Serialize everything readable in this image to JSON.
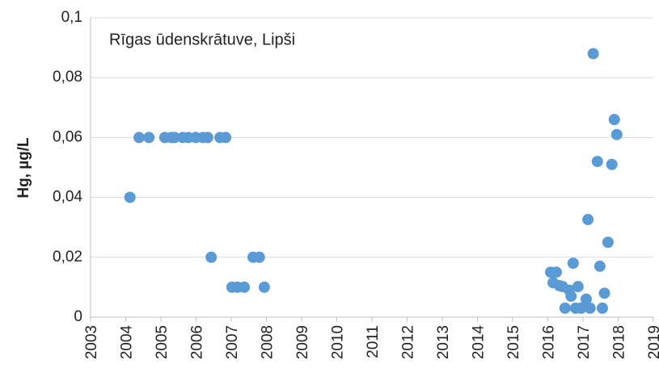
{
  "chart_data": {
    "type": "scatter",
    "title": "Rīgas ūdenskrātuve, Lipši",
    "y_label": "Hg, µg/L",
    "color": "#5b9bd5",
    "grid": true,
    "xlim": [
      2003,
      2019
    ],
    "xticks": [
      2003,
      2004,
      2005,
      2006,
      2007,
      2008,
      2009,
      2010,
      2011,
      2012,
      2013,
      2014,
      2015,
      2016,
      2017,
      2018,
      2019
    ],
    "ylim": [
      0,
      0.1
    ],
    "yticks": [
      0,
      {
        "value": 0.02,
        "label": "0,02"
      },
      {
        "value": 0.04,
        "label": "0,04"
      },
      {
        "value": 0.06,
        "label": "0,06"
      },
      {
        "value": 0.08,
        "label": "0,08"
      },
      {
        "value": 0.1,
        "label": "0,1"
      }
    ],
    "x": [
      2004.12,
      2004.38,
      2004.66,
      2005.11,
      2005.3,
      2005.39,
      2005.62,
      2005.78,
      2005.99,
      2006.2,
      2006.33,
      2006.43,
      2006.68,
      2006.84,
      2007.02,
      2007.18,
      2007.37,
      2007.62,
      2007.8,
      2007.94,
      2016.08,
      2016.15,
      2016.24,
      2016.33,
      2016.42,
      2016.49,
      2016.61,
      2016.66,
      2016.72,
      2016.79,
      2016.86,
      2016.95,
      2017.09,
      2017.14,
      2017.2,
      2017.29,
      2017.41,
      2017.48,
      2017.55,
      2017.61,
      2017.71,
      2017.82,
      2017.89,
      2017.96
    ],
    "values": [
      0.04,
      0.06,
      0.06,
      0.06,
      0.06,
      0.06,
      0.06,
      0.06,
      0.06,
      0.06,
      0.06,
      0.02,
      0.06,
      0.06,
      0.01,
      0.01,
      0.01,
      0.02,
      0.02,
      0.01,
      0.015,
      0.0115,
      0.015,
      0.0105,
      0.0102,
      0.003,
      0.009,
      0.007,
      0.018,
      0.003,
      0.0102,
      0.003,
      0.006,
      0.0326,
      0.003,
      0.088,
      0.052,
      0.017,
      0.003,
      0.008,
      0.025,
      0.051,
      0.066,
      0.061
    ]
  }
}
